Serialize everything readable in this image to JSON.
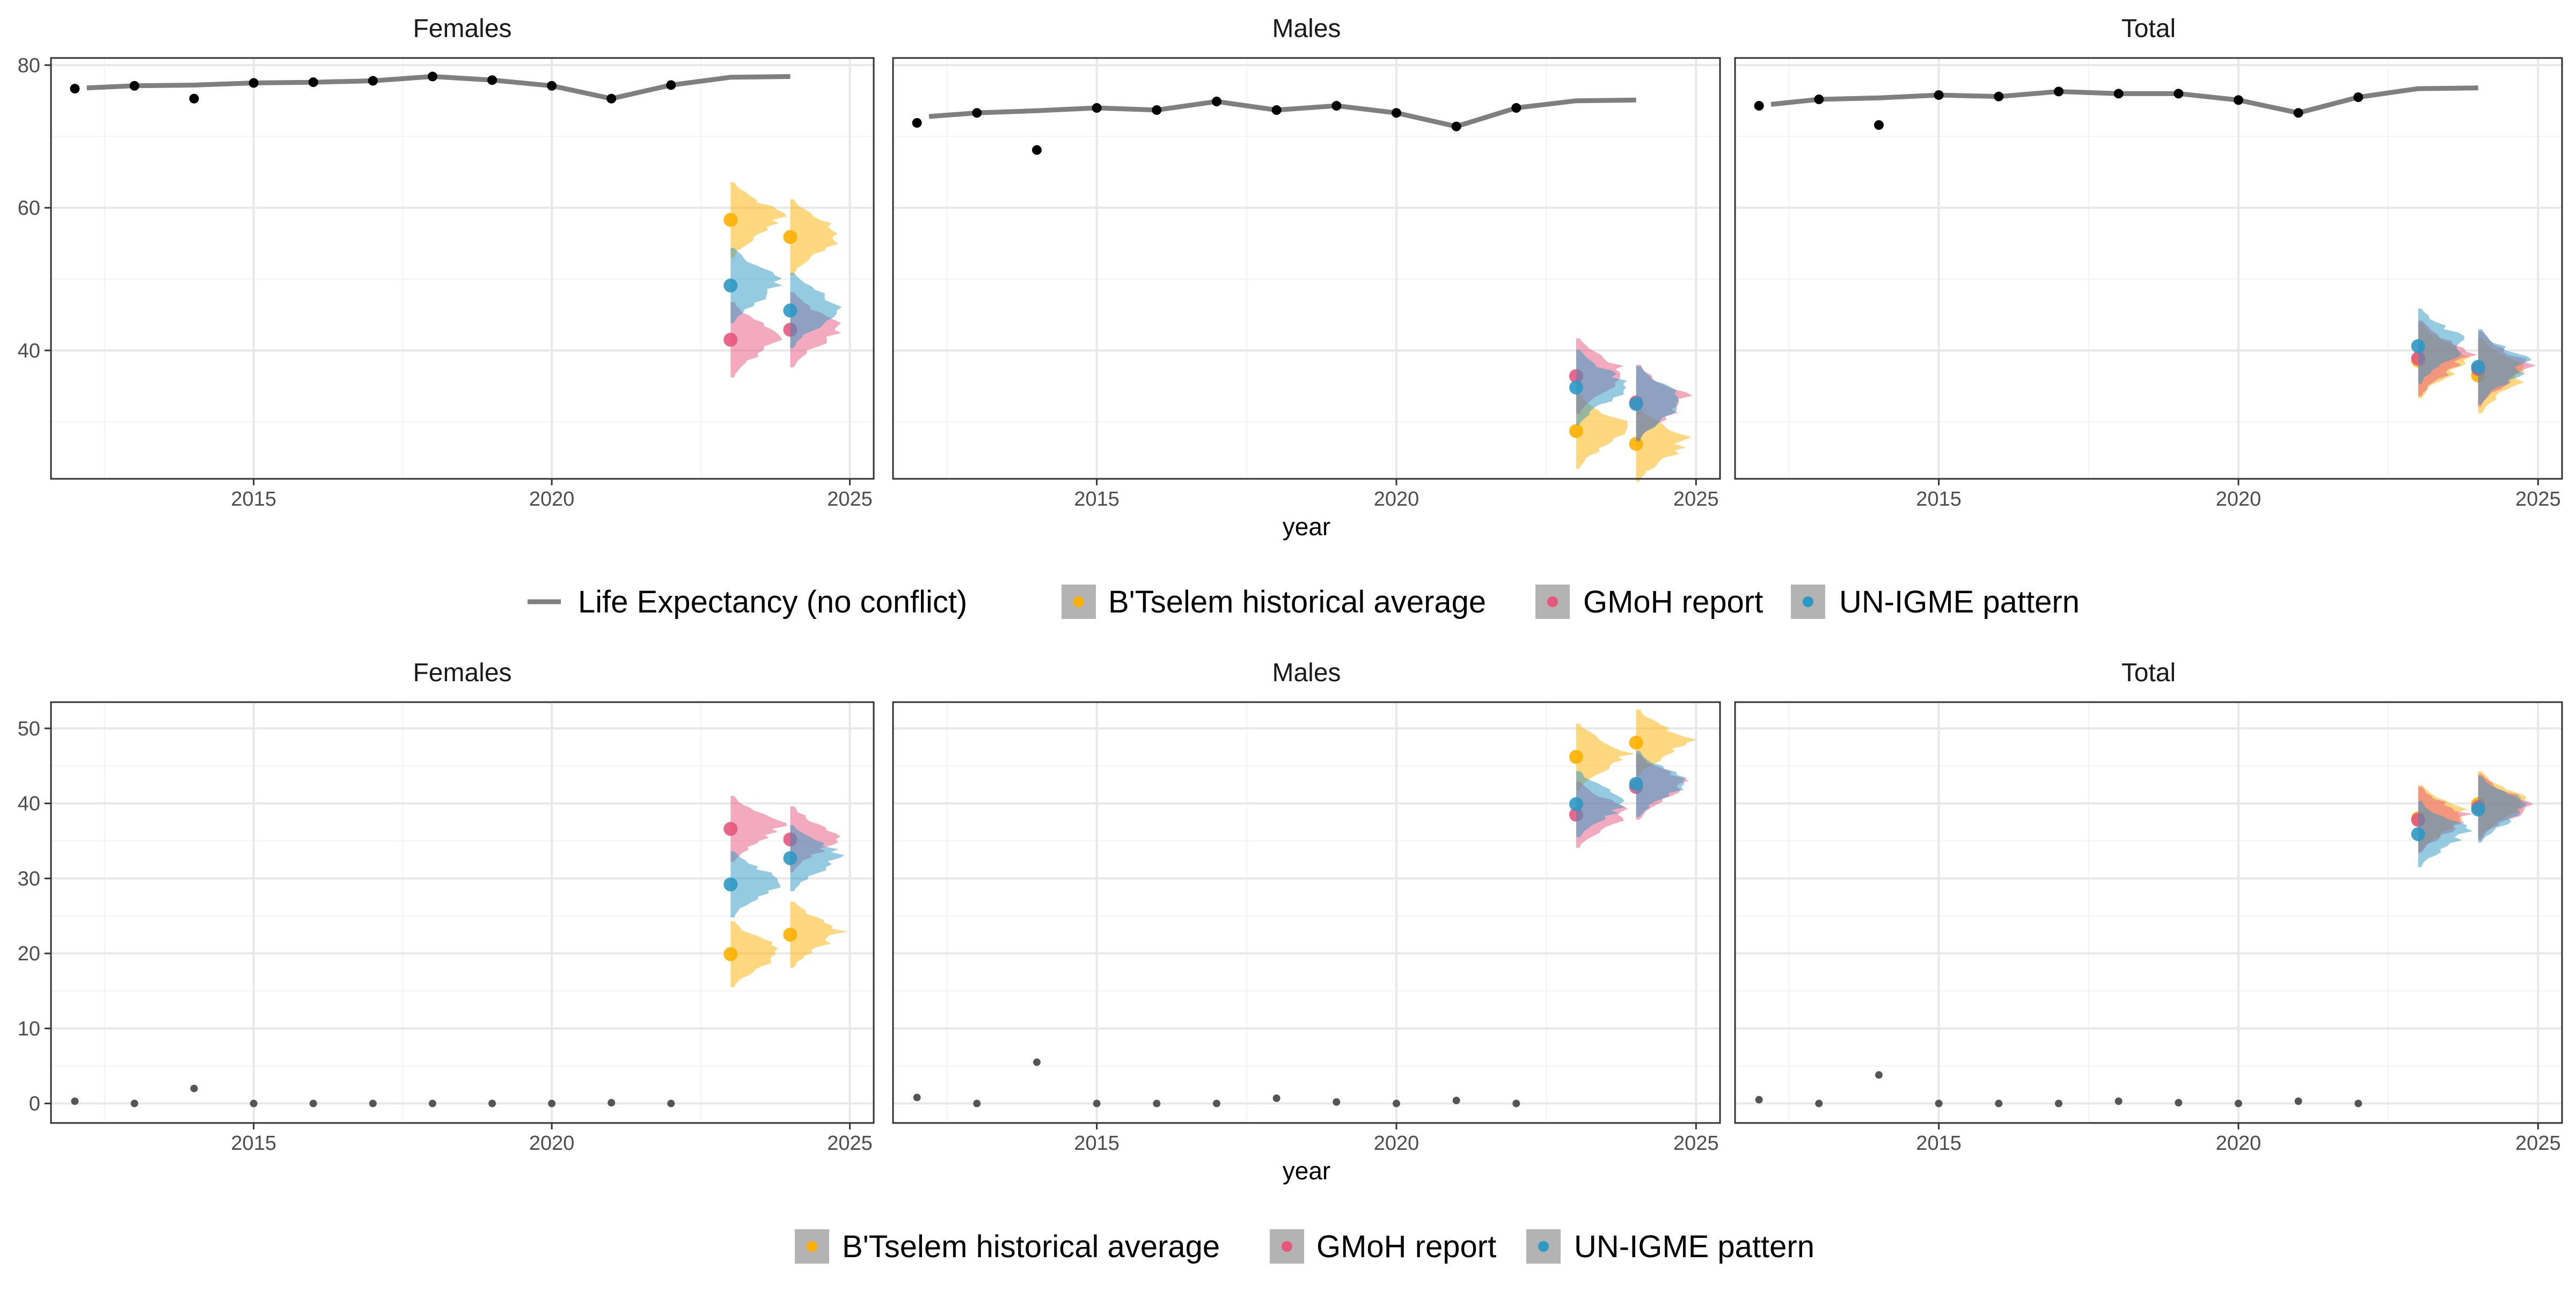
{
  "figure": {
    "colors": {
      "life_line": "#7f7f7f",
      "observed": "#000000",
      "btselem": "#FFB000",
      "gmoh": "#E7567D",
      "unigme": "#2C98C4",
      "grid_major": "#e8e8e8",
      "grid_minor": "#f3f3f3",
      "panel_border": "#333333",
      "strip_text": "#1a1a1a",
      "axis_text": "#4d4d4d",
      "legend_key_bg": "#b3b3b3"
    }
  },
  "chart_data": [
    {
      "type": "line",
      "panels": [
        "Females",
        "Males",
        "Total"
      ],
      "xlabel": "year",
      "ylabel": "",
      "xlim": [
        2011.6,
        2025.4
      ],
      "ylim": [
        22,
        81
      ],
      "x_ticks": [
        2015,
        2020,
        2025
      ],
      "y_ticks": [
        40,
        60,
        80
      ],
      "grid": true,
      "legend": {
        "position": "bottom",
        "entries": [
          {
            "label": "Life Expectancy (no conflict)",
            "key": "line",
            "color_key": "life_line"
          },
          {
            "label": "B'Tselem historical average",
            "key": "point",
            "color_key": "btselem"
          },
          {
            "label": "GMoH report",
            "key": "point",
            "color_key": "gmoh"
          },
          {
            "label": "UN-IGME pattern",
            "key": "point",
            "color_key": "unigme"
          }
        ]
      },
      "line_series": {
        "name": "Life Expectancy (no conflict)",
        "x": [
          2012.2,
          2013,
          2014,
          2015,
          2016,
          2017,
          2018,
          2019,
          2020,
          2021,
          2022,
          2023,
          2024
        ],
        "Females": [
          76.8,
          77.1,
          77.2,
          77.5,
          77.6,
          77.8,
          78.4,
          77.9,
          77.1,
          75.3,
          77.2,
          78.3,
          78.4
        ],
        "Males": [
          72.8,
          73.3,
          73.6,
          74.0,
          73.7,
          74.9,
          73.7,
          74.3,
          73.3,
          71.4,
          74.0,
          75.0,
          75.1
        ],
        "Total": [
          74.5,
          75.2,
          75.4,
          75.8,
          75.6,
          76.3,
          76.0,
          76.0,
          75.1,
          73.3,
          75.5,
          76.7,
          76.8
        ]
      },
      "observed_points": {
        "x": [
          2012,
          2013,
          2014,
          2015,
          2016,
          2017,
          2018,
          2019,
          2020,
          2021,
          2022
        ],
        "Females": [
          76.7,
          77.1,
          75.3,
          77.5,
          77.6,
          77.8,
          78.4,
          77.9,
          77.1,
          75.3,
          77.2
        ],
        "Males": [
          71.9,
          73.3,
          68.1,
          74.0,
          73.7,
          74.9,
          73.7,
          74.3,
          73.3,
          71.4,
          74.0
        ],
        "Total": [
          74.3,
          75.2,
          71.6,
          75.8,
          75.6,
          76.3,
          76.0,
          76.0,
          75.1,
          73.3,
          75.5
        ]
      },
      "estimate_series": [
        {
          "name": "B'Tselem historical average",
          "color_key": "btselem",
          "x": [
            2023,
            2024
          ],
          "Females": [
            58.3,
            55.9
          ],
          "Males": [
            28.7,
            26.9
          ],
          "Total": [
            38.6,
            36.5
          ]
        },
        {
          "name": "GMoH report",
          "color_key": "gmoh",
          "x": [
            2023,
            2024
          ],
          "Females": [
            41.5,
            42.9
          ],
          "Males": [
            36.4,
            32.7
          ],
          "Total": [
            38.9,
            37.4
          ]
        },
        {
          "name": "UN-IGME pattern",
          "color_key": "unigme",
          "x": [
            2023,
            2024
          ],
          "Females": [
            49.1,
            45.6
          ],
          "Males": [
            34.8,
            32.5
          ],
          "Total": [
            40.6,
            37.7
          ]
        }
      ]
    },
    {
      "type": "scatter",
      "panels": [
        "Females",
        "Males",
        "Total"
      ],
      "xlabel": "year",
      "ylabel": "",
      "xlim": [
        2011.6,
        2025.4
      ],
      "ylim": [
        -2.6,
        53.5
      ],
      "x_ticks": [
        2015,
        2020,
        2025
      ],
      "y_ticks": [
        0,
        10,
        20,
        30,
        40,
        50
      ],
      "grid": true,
      "legend": {
        "position": "bottom",
        "entries": [
          {
            "label": "B'Tselem historical average",
            "key": "point",
            "color_key": "btselem"
          },
          {
            "label": "GMoH report",
            "key": "point",
            "color_key": "gmoh"
          },
          {
            "label": "UN-IGME pattern",
            "key": "point",
            "color_key": "unigme"
          }
        ]
      },
      "observed_points": {
        "x": [
          2012,
          2013,
          2014,
          2015,
          2016,
          2017,
          2018,
          2019,
          2020,
          2021,
          2022
        ],
        "Females": [
          0.3,
          0.0,
          2.0,
          0.0,
          0.0,
          0.0,
          0.0,
          0.0,
          0.0,
          0.1,
          0.0
        ],
        "Males": [
          0.8,
          0.0,
          5.5,
          0.0,
          0.0,
          0.0,
          0.7,
          0.2,
          0.0,
          0.4,
          0.0
        ],
        "Total": [
          0.5,
          0.0,
          3.8,
          0.0,
          0.0,
          0.0,
          0.3,
          0.1,
          0.0,
          0.3,
          0.0
        ]
      },
      "estimate_series": [
        {
          "name": "B'Tselem historical average",
          "color_key": "btselem",
          "x": [
            2023,
            2024
          ],
          "Females": [
            19.9,
            22.5
          ],
          "Males": [
            46.2,
            48.1
          ],
          "Total": [
            38.0,
            39.9
          ]
        },
        {
          "name": "GMoH report",
          "color_key": "gmoh",
          "x": [
            2023,
            2024
          ],
          "Females": [
            36.6,
            35.2
          ],
          "Males": [
            38.5,
            42.2
          ],
          "Total": [
            37.8,
            39.5
          ]
        },
        {
          "name": "UN-IGME pattern",
          "color_key": "unigme",
          "x": [
            2023,
            2024
          ],
          "Females": [
            29.2,
            32.7
          ],
          "Males": [
            39.9,
            42.6
          ],
          "Total": [
            35.9,
            39.2
          ]
        }
      ]
    }
  ]
}
